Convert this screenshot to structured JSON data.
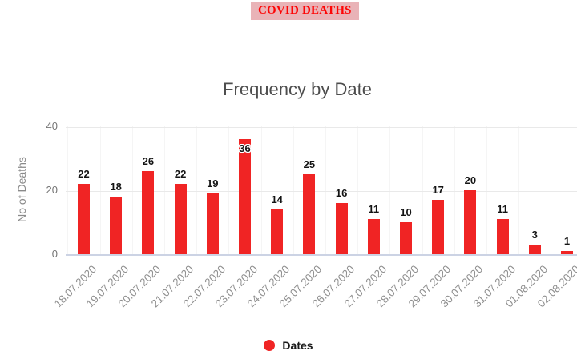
{
  "header": {
    "badge": "COVID DEATHS"
  },
  "chart_data": {
    "type": "bar",
    "title": "Frequency by Date",
    "xlabel": "",
    "ylabel": "No of Deaths",
    "categories": [
      "18.07.2020",
      "19.07.2020",
      "20.07.2020",
      "21.07.2020",
      "22.07.2020",
      "23.07.2020",
      "24.07.2020",
      "25.07.2020",
      "26.07.2020",
      "27.07.2020",
      "28.07.2020",
      "29.07.2020",
      "30.07.2020",
      "31.07.2020",
      "01.08.2020",
      "02.08.2020"
    ],
    "values": [
      22,
      18,
      26,
      22,
      19,
      36,
      14,
      25,
      16,
      11,
      10,
      17,
      20,
      11,
      3,
      1
    ],
    "ylim": [
      0,
      40
    ],
    "yticks": [
      0,
      20,
      40
    ],
    "grid": true,
    "value_labels": true,
    "bar_color": "#f02424",
    "legend": {
      "label": "Dates",
      "position": "bottom",
      "marker": "circle"
    }
  },
  "colors": {
    "badge_bg": "#e9b3b7",
    "badge_text": "#fd0505",
    "bar": "#f02424",
    "title_text": "#4d4d4d",
    "axis_text": "#8f8f8f",
    "baseline": "#ccd3e4"
  }
}
